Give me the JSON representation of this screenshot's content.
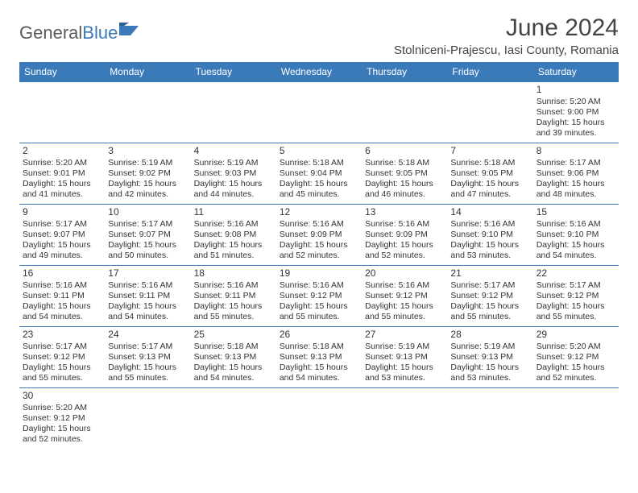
{
  "logo": {
    "text1": "General",
    "text2": "Blue"
  },
  "title": "June 2024",
  "location": "Stolniceni-Prajescu, Iasi County, Romania",
  "weekdays": [
    "Sunday",
    "Monday",
    "Tuesday",
    "Wednesday",
    "Thursday",
    "Friday",
    "Saturday"
  ],
  "colors": {
    "header_bg": "#3a7ab8",
    "header_fg": "#ffffff",
    "border": "#3a7ab8",
    "text": "#333333",
    "page_bg": "#ffffff"
  },
  "typography": {
    "title_fontsize": 30,
    "location_fontsize": 15,
    "weekday_fontsize": 12,
    "cell_fontsize": 10.5
  },
  "first_weekday_index": 6,
  "days": [
    {
      "n": 1,
      "sunrise": "5:20 AM",
      "sunset": "9:00 PM",
      "daylight": "15 hours and 39 minutes."
    },
    {
      "n": 2,
      "sunrise": "5:20 AM",
      "sunset": "9:01 PM",
      "daylight": "15 hours and 41 minutes."
    },
    {
      "n": 3,
      "sunrise": "5:19 AM",
      "sunset": "9:02 PM",
      "daylight": "15 hours and 42 minutes."
    },
    {
      "n": 4,
      "sunrise": "5:19 AM",
      "sunset": "9:03 PM",
      "daylight": "15 hours and 44 minutes."
    },
    {
      "n": 5,
      "sunrise": "5:18 AM",
      "sunset": "9:04 PM",
      "daylight": "15 hours and 45 minutes."
    },
    {
      "n": 6,
      "sunrise": "5:18 AM",
      "sunset": "9:05 PM",
      "daylight": "15 hours and 46 minutes."
    },
    {
      "n": 7,
      "sunrise": "5:18 AM",
      "sunset": "9:05 PM",
      "daylight": "15 hours and 47 minutes."
    },
    {
      "n": 8,
      "sunrise": "5:17 AM",
      "sunset": "9:06 PM",
      "daylight": "15 hours and 48 minutes."
    },
    {
      "n": 9,
      "sunrise": "5:17 AM",
      "sunset": "9:07 PM",
      "daylight": "15 hours and 49 minutes."
    },
    {
      "n": 10,
      "sunrise": "5:17 AM",
      "sunset": "9:07 PM",
      "daylight": "15 hours and 50 minutes."
    },
    {
      "n": 11,
      "sunrise": "5:16 AM",
      "sunset": "9:08 PM",
      "daylight": "15 hours and 51 minutes."
    },
    {
      "n": 12,
      "sunrise": "5:16 AM",
      "sunset": "9:09 PM",
      "daylight": "15 hours and 52 minutes."
    },
    {
      "n": 13,
      "sunrise": "5:16 AM",
      "sunset": "9:09 PM",
      "daylight": "15 hours and 52 minutes."
    },
    {
      "n": 14,
      "sunrise": "5:16 AM",
      "sunset": "9:10 PM",
      "daylight": "15 hours and 53 minutes."
    },
    {
      "n": 15,
      "sunrise": "5:16 AM",
      "sunset": "9:10 PM",
      "daylight": "15 hours and 54 minutes."
    },
    {
      "n": 16,
      "sunrise": "5:16 AM",
      "sunset": "9:11 PM",
      "daylight": "15 hours and 54 minutes."
    },
    {
      "n": 17,
      "sunrise": "5:16 AM",
      "sunset": "9:11 PM",
      "daylight": "15 hours and 54 minutes."
    },
    {
      "n": 18,
      "sunrise": "5:16 AM",
      "sunset": "9:11 PM",
      "daylight": "15 hours and 55 minutes."
    },
    {
      "n": 19,
      "sunrise": "5:16 AM",
      "sunset": "9:12 PM",
      "daylight": "15 hours and 55 minutes."
    },
    {
      "n": 20,
      "sunrise": "5:16 AM",
      "sunset": "9:12 PM",
      "daylight": "15 hours and 55 minutes."
    },
    {
      "n": 21,
      "sunrise": "5:17 AM",
      "sunset": "9:12 PM",
      "daylight": "15 hours and 55 minutes."
    },
    {
      "n": 22,
      "sunrise": "5:17 AM",
      "sunset": "9:12 PM",
      "daylight": "15 hours and 55 minutes."
    },
    {
      "n": 23,
      "sunrise": "5:17 AM",
      "sunset": "9:12 PM",
      "daylight": "15 hours and 55 minutes."
    },
    {
      "n": 24,
      "sunrise": "5:17 AM",
      "sunset": "9:13 PM",
      "daylight": "15 hours and 55 minutes."
    },
    {
      "n": 25,
      "sunrise": "5:18 AM",
      "sunset": "9:13 PM",
      "daylight": "15 hours and 54 minutes."
    },
    {
      "n": 26,
      "sunrise": "5:18 AM",
      "sunset": "9:13 PM",
      "daylight": "15 hours and 54 minutes."
    },
    {
      "n": 27,
      "sunrise": "5:19 AM",
      "sunset": "9:13 PM",
      "daylight": "15 hours and 53 minutes."
    },
    {
      "n": 28,
      "sunrise": "5:19 AM",
      "sunset": "9:13 PM",
      "daylight": "15 hours and 53 minutes."
    },
    {
      "n": 29,
      "sunrise": "5:20 AM",
      "sunset": "9:12 PM",
      "daylight": "15 hours and 52 minutes."
    },
    {
      "n": 30,
      "sunrise": "5:20 AM",
      "sunset": "9:12 PM",
      "daylight": "15 hours and 52 minutes."
    }
  ],
  "labels": {
    "sunrise": "Sunrise:",
    "sunset": "Sunset:",
    "daylight": "Daylight:"
  }
}
